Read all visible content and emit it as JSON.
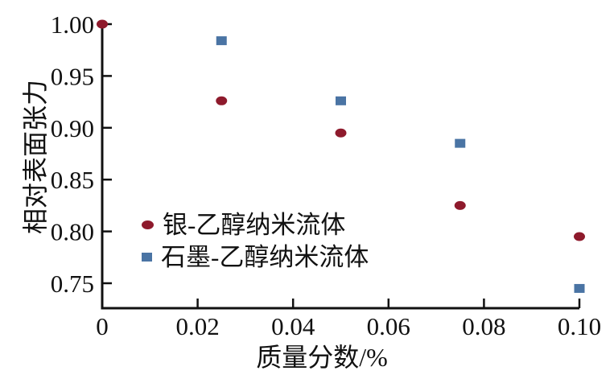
{
  "chart_data": {
    "type": "scatter",
    "title": "",
    "xlabel": "质量分数/%",
    "ylabel": "相对表面张力",
    "xlim": [
      0,
      0.1
    ],
    "ylim": [
      0.75,
      1.0
    ],
    "x_ticks": [
      0,
      0.02,
      0.04,
      0.06,
      0.08,
      0.1
    ],
    "x_tick_labels": [
      "0",
      "0.02",
      "0.04",
      "0.06",
      "0.08",
      "0.10"
    ],
    "y_ticks": [
      0.75,
      0.8,
      0.85,
      0.9,
      0.95,
      1.0
    ],
    "y_tick_labels": [
      "0.75",
      "0.80",
      "0.85",
      "0.90",
      "0.95",
      "1.00"
    ],
    "grid": false,
    "legend_position": "inside-lower-left",
    "series": [
      {
        "name": "银-乙醇纳米流体",
        "marker": "circle",
        "color": "#8e1a2c",
        "points": [
          [
            0,
            1.0
          ],
          [
            0.025,
            0.926
          ],
          [
            0.05,
            0.895
          ],
          [
            0.075,
            0.825
          ],
          [
            0.1,
            0.795
          ]
        ]
      },
      {
        "name": "石墨-乙醇纳米流体",
        "marker": "square",
        "color": "#4a74a4",
        "points": [
          [
            0.025,
            0.984
          ],
          [
            0.05,
            0.926
          ],
          [
            0.075,
            0.885
          ],
          [
            0.1,
            0.745
          ]
        ]
      }
    ]
  },
  "colors": {
    "axis": "#111111",
    "text": "#111111",
    "background": "#ffffff"
  }
}
